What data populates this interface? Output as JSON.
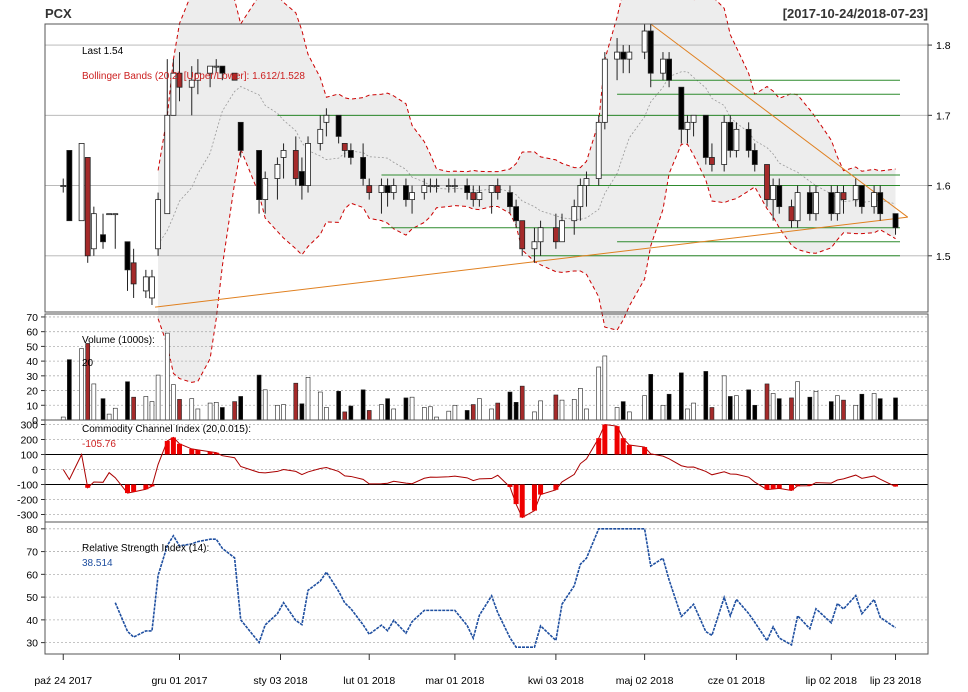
{
  "header": {
    "symbol": "PCX",
    "date_range": "[2017-10-24/2018-07-23]"
  },
  "chart_data": [
    {
      "panel": "price",
      "type": "candlestick",
      "last_label": "Last 1.54",
      "bb_label": "Bollinger Bands (20,2) [Upper/Lower]: 1.612/1.528",
      "yticks": [
        1.5,
        1.6,
        1.7,
        1.8
      ],
      "ylim": [
        1.42,
        1.83
      ],
      "grid": true,
      "hlines": [
        {
          "y": 1.75,
          "from": "2018-05-04",
          "color": "#2e8b2e"
        },
        {
          "y": 1.73,
          "from": "2018-04-23",
          "color": "#2e8b2e"
        },
        {
          "y": 1.7,
          "from": "2018-01-02",
          "color": "#2e8b2e"
        },
        {
          "y": 1.615,
          "from": "2018-02-05",
          "color": "#2e8b2e"
        },
        {
          "y": 1.6,
          "from": "2018-04-10",
          "color": "#2e8b2e"
        },
        {
          "y": 1.54,
          "from": "2018-02-05",
          "color": "#2e8b2e"
        },
        {
          "y": 1.52,
          "from": "2018-04-23",
          "color": "#2e8b2e"
        },
        {
          "y": 1.5,
          "from": "2018-03-26",
          "color": "#2e8b2e"
        }
      ],
      "trendlines": [
        {
          "from": [
            "2017-11-23",
            1.427
          ],
          "to": [
            "2018-07-27",
            1.555
          ],
          "color": "#e08020"
        },
        {
          "from": [
            "2018-05-04",
            1.83
          ],
          "to": [
            "2018-07-27",
            1.555
          ],
          "color": "#e08020"
        }
      ],
      "candles": [
        [
          "2017-10-24",
          1.6,
          1.61,
          1.59,
          1.6
        ],
        [
          "2017-10-26",
          1.65,
          1.65,
          1.55,
          1.55
        ],
        [
          "2017-10-30",
          1.55,
          1.66,
          1.55,
          1.66
        ],
        [
          "2017-11-01",
          1.64,
          1.64,
          1.49,
          1.5
        ],
        [
          "2017-11-03",
          1.51,
          1.57,
          1.5,
          1.56
        ],
        [
          "2017-11-06",
          1.53,
          1.56,
          1.51,
          1.52
        ],
        [
          "2017-11-08",
          1.56,
          1.56,
          1.56,
          1.56
        ],
        [
          "2017-11-10",
          1.56,
          1.56,
          1.51,
          1.56
        ],
        [
          "2017-11-14",
          1.52,
          1.52,
          1.45,
          1.48
        ],
        [
          "2017-11-16",
          1.49,
          1.51,
          1.44,
          1.46
        ],
        [
          "2017-11-20",
          1.45,
          1.48,
          1.44,
          1.47
        ],
        [
          "2017-11-22",
          1.44,
          1.48,
          1.43,
          1.47
        ],
        [
          "2017-11-24",
          1.51,
          1.59,
          1.5,
          1.58
        ],
        [
          "2017-11-27",
          1.56,
          1.78,
          1.56,
          1.7
        ],
        [
          "2017-11-29",
          1.7,
          1.78,
          1.7,
          1.76
        ],
        [
          "2017-12-01",
          1.76,
          1.79,
          1.72,
          1.74
        ],
        [
          "2017-12-05",
          1.74,
          1.77,
          1.7,
          1.75
        ],
        [
          "2017-12-07",
          1.75,
          1.78,
          1.73,
          1.76
        ],
        [
          "2017-12-11",
          1.76,
          1.77,
          1.74,
          1.77
        ],
        [
          "2017-12-13",
          1.77,
          1.78,
          1.76,
          1.77
        ],
        [
          "2017-12-15",
          1.77,
          1.77,
          1.75,
          1.76
        ],
        [
          "2017-12-19",
          1.76,
          1.76,
          1.75,
          1.75
        ],
        [
          "2017-12-21",
          1.69,
          1.69,
          1.64,
          1.65
        ],
        [
          "2017-12-27",
          1.65,
          1.65,
          1.56,
          1.58
        ],
        [
          "2017-12-29",
          1.58,
          1.62,
          1.56,
          1.61
        ],
        [
          "2018-01-02",
          1.61,
          1.64,
          1.58,
          1.63
        ],
        [
          "2018-01-04",
          1.64,
          1.66,
          1.61,
          1.65
        ],
        [
          "2018-01-08",
          1.65,
          1.67,
          1.6,
          1.61
        ],
        [
          "2018-01-10",
          1.62,
          1.64,
          1.58,
          1.6
        ],
        [
          "2018-01-12",
          1.6,
          1.67,
          1.59,
          1.66
        ],
        [
          "2018-01-16",
          1.66,
          1.7,
          1.65,
          1.68
        ],
        [
          "2018-01-18",
          1.69,
          1.71,
          1.67,
          1.7
        ],
        [
          "2018-01-22",
          1.7,
          1.7,
          1.66,
          1.67
        ],
        [
          "2018-01-24",
          1.66,
          1.66,
          1.64,
          1.65
        ],
        [
          "2018-01-26",
          1.65,
          1.66,
          1.63,
          1.64
        ],
        [
          "2018-01-30",
          1.64,
          1.66,
          1.6,
          1.61
        ],
        [
          "2018-02-01",
          1.6,
          1.61,
          1.58,
          1.59
        ],
        [
          "2018-02-05",
          1.59,
          1.61,
          1.56,
          1.6
        ],
        [
          "2018-02-07",
          1.6,
          1.61,
          1.57,
          1.59
        ],
        [
          "2018-02-09",
          1.59,
          1.61,
          1.58,
          1.6
        ],
        [
          "2018-02-13",
          1.6,
          1.61,
          1.57,
          1.58
        ],
        [
          "2018-02-15",
          1.58,
          1.6,
          1.56,
          1.59
        ],
        [
          "2018-02-19",
          1.59,
          1.61,
          1.58,
          1.6
        ],
        [
          "2018-02-21",
          1.6,
          1.61,
          1.59,
          1.6
        ],
        [
          "2018-02-23",
          1.6,
          1.61,
          1.59,
          1.6
        ],
        [
          "2018-02-27",
          1.6,
          1.61,
          1.59,
          1.6
        ],
        [
          "2018-03-01",
          1.6,
          1.61,
          1.59,
          1.6
        ],
        [
          "2018-03-05",
          1.6,
          1.61,
          1.58,
          1.59
        ],
        [
          "2018-03-07",
          1.59,
          1.6,
          1.57,
          1.58
        ],
        [
          "2018-03-09",
          1.58,
          1.6,
          1.57,
          1.59
        ],
        [
          "2018-03-13",
          1.59,
          1.6,
          1.56,
          1.6
        ],
        [
          "2018-03-15",
          1.6,
          1.61,
          1.58,
          1.59
        ],
        [
          "2018-03-19",
          1.59,
          1.6,
          1.56,
          1.57
        ],
        [
          "2018-03-21",
          1.57,
          1.58,
          1.54,
          1.55
        ],
        [
          "2018-03-23",
          1.55,
          1.55,
          1.5,
          1.51
        ],
        [
          "2018-03-27",
          1.51,
          1.54,
          1.49,
          1.52
        ],
        [
          "2018-03-29",
          1.52,
          1.55,
          1.5,
          1.54
        ],
        [
          "2018-04-03",
          1.54,
          1.56,
          1.51,
          1.52
        ],
        [
          "2018-04-05",
          1.52,
          1.56,
          1.52,
          1.55
        ],
        [
          "2018-04-09",
          1.55,
          1.58,
          1.53,
          1.57
        ],
        [
          "2018-04-11",
          1.57,
          1.61,
          1.55,
          1.6
        ],
        [
          "2018-04-13",
          1.6,
          1.62,
          1.57,
          1.61
        ],
        [
          "2018-04-17",
          1.61,
          1.7,
          1.6,
          1.69
        ],
        [
          "2018-04-19",
          1.69,
          1.79,
          1.68,
          1.78
        ],
        [
          "2018-04-23",
          1.78,
          1.81,
          1.75,
          1.79
        ],
        [
          "2018-04-25",
          1.79,
          1.8,
          1.76,
          1.78
        ],
        [
          "2018-04-27",
          1.78,
          1.8,
          1.76,
          1.79
        ],
        [
          "2018-05-02",
          1.79,
          1.83,
          1.78,
          1.82
        ],
        [
          "2018-05-04",
          1.82,
          1.83,
          1.74,
          1.76
        ],
        [
          "2018-05-08",
          1.76,
          1.79,
          1.75,
          1.78
        ],
        [
          "2018-05-10",
          1.78,
          1.79,
          1.74,
          1.75
        ],
        [
          "2018-05-14",
          1.74,
          1.74,
          1.66,
          1.68
        ],
        [
          "2018-05-16",
          1.68,
          1.7,
          1.66,
          1.69
        ],
        [
          "2018-05-18",
          1.69,
          1.7,
          1.67,
          1.7
        ],
        [
          "2018-05-22",
          1.7,
          1.7,
          1.63,
          1.64
        ],
        [
          "2018-05-24",
          1.64,
          1.66,
          1.62,
          1.63
        ],
        [
          "2018-05-28",
          1.63,
          1.7,
          1.62,
          1.69
        ],
        [
          "2018-05-30",
          1.69,
          1.7,
          1.64,
          1.65
        ],
        [
          "2018-06-01",
          1.65,
          1.69,
          1.64,
          1.68
        ],
        [
          "2018-06-05",
          1.68,
          1.69,
          1.64,
          1.65
        ],
        [
          "2018-06-07",
          1.65,
          1.66,
          1.62,
          1.63
        ],
        [
          "2018-06-11",
          1.63,
          1.63,
          1.57,
          1.58
        ],
        [
          "2018-06-13",
          1.58,
          1.61,
          1.55,
          1.6
        ],
        [
          "2018-06-15",
          1.6,
          1.61,
          1.56,
          1.57
        ],
        [
          "2018-06-19",
          1.57,
          1.58,
          1.54,
          1.55
        ],
        [
          "2018-06-21",
          1.55,
          1.6,
          1.54,
          1.59
        ],
        [
          "2018-06-25",
          1.59,
          1.6,
          1.55,
          1.56
        ],
        [
          "2018-06-27",
          1.56,
          1.6,
          1.55,
          1.59
        ],
        [
          "2018-07-02",
          1.59,
          1.6,
          1.55,
          1.56
        ],
        [
          "2018-07-04",
          1.56,
          1.6,
          1.55,
          1.59
        ],
        [
          "2018-07-06",
          1.59,
          1.6,
          1.56,
          1.58
        ],
        [
          "2018-07-10",
          1.58,
          1.61,
          1.57,
          1.6
        ],
        [
          "2018-07-12",
          1.6,
          1.6,
          1.56,
          1.57
        ],
        [
          "2018-07-16",
          1.57,
          1.6,
          1.56,
          1.59
        ],
        [
          "2018-07-18",
          1.59,
          1.6,
          1.55,
          1.56
        ],
        [
          "2018-07-23",
          1.56,
          1.56,
          1.53,
          1.54
        ]
      ]
    },
    {
      "panel": "volume",
      "type": "bar",
      "title": "Volume (1000s):",
      "last_value": "20",
      "yticks": [
        0,
        10,
        20,
        30,
        40,
        50,
        60,
        70
      ],
      "ylim": [
        0,
        72
      ]
    },
    {
      "panel": "cci",
      "type": "line",
      "title": "Commodity Channel Index (20,0.015):",
      "last_value": "-105.76",
      "yticks": [
        300,
        200,
        100,
        0,
        -100,
        -200,
        -300
      ],
      "ylim": [
        -350,
        330
      ],
      "bands": [
        100,
        -100
      ]
    },
    {
      "panel": "rsi",
      "type": "line",
      "title": "Relative Strength Index (14):",
      "last_value": "38.514",
      "yticks": [
        80,
        70,
        60,
        50,
        40,
        30
      ],
      "ylim": [
        25,
        83
      ]
    }
  ],
  "xaxis": {
    "ticks": [
      {
        "date": "2017-10-24",
        "label": "paź 24 2017"
      },
      {
        "date": "2017-12-01",
        "label": "gru 01 2017"
      },
      {
        "date": "2018-01-03",
        "label": "sty 03 2018"
      },
      {
        "date": "2018-02-01",
        "label": "lut 01 2018"
      },
      {
        "date": "2018-03-01",
        "label": "mar 01 2018"
      },
      {
        "date": "2018-04-03",
        "label": "kwi 03 2018"
      },
      {
        "date": "2018-05-02",
        "label": "maj 02 2018"
      },
      {
        "date": "2018-06-01",
        "label": "cze 01 2018"
      },
      {
        "date": "2018-07-02",
        "label": "lip 02 2018"
      },
      {
        "date": "2018-07-23",
        "label": "lip 23 2018"
      }
    ],
    "start": "2017-10-20",
    "end": "2018-07-31"
  },
  "colors": {
    "up": "#ffffff",
    "down": "#000000",
    "down_alt": "#a52a2a",
    "band": "#cc0000",
    "band_fill": "#ededed",
    "grid": "#b0b0b0",
    "rsi": "#1f4fa0",
    "cci_fill": "#ee0000"
  }
}
